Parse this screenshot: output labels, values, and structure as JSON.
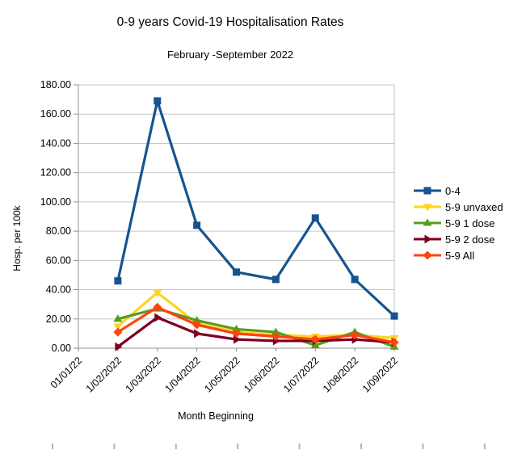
{
  "chart_data": {
    "type": "line",
    "title": "0-9 years Covid-19 Hospitalisation Rates",
    "subtitle": "February -September 2022",
    "xlabel": "Month Beginning",
    "ylabel": "Hosp. per 100k",
    "ylim": [
      0,
      180
    ],
    "y_tick_step": 20,
    "y_tick_labels": [
      "0.00",
      "20.00",
      "40.00",
      "60.00",
      "80.00",
      "100.00",
      "120.00",
      "140.00",
      "160.00",
      "180.00"
    ],
    "grid": "horizontal",
    "legend_position": "right",
    "categories": [
      "01/01/22",
      "1/02/2022",
      "1/03/2022",
      "1/04/2022",
      "1/05/2022",
      "1/06/2022",
      "1/07/2022",
      "1/08/2022",
      "1/09/2022"
    ],
    "series": [
      {
        "name": "0-4",
        "color": "#17538F",
        "marker": "square",
        "values": [
          null,
          46,
          169,
          84,
          52,
          47,
          89,
          47,
          22
        ]
      },
      {
        "name": "5-9 unvaxed",
        "color": "#FFD320",
        "marker": "triangle-down",
        "values": [
          null,
          15,
          38,
          17,
          11,
          9,
          8,
          9,
          7
        ]
      },
      {
        "name": "5-9 1 dose",
        "color": "#579D1C",
        "marker": "triangle-up",
        "values": [
          null,
          20,
          27,
          19,
          13,
          11,
          2,
          11,
          1
        ]
      },
      {
        "name": "5-9 2 dose",
        "color": "#7E0021",
        "marker": "triangle-right",
        "values": [
          null,
          1,
          21,
          10,
          6,
          5,
          5,
          6,
          4
        ]
      },
      {
        "name": "5-9 All",
        "color": "#FF420E",
        "marker": "diamond",
        "values": [
          null,
          11,
          28,
          16,
          10,
          8,
          6,
          9,
          4
        ]
      }
    ],
    "colors": {
      "gridline": "#c6c6c6",
      "axis": "#8f8f8f",
      "bottom_ruler_ticks": "#b3b3b3"
    }
  }
}
